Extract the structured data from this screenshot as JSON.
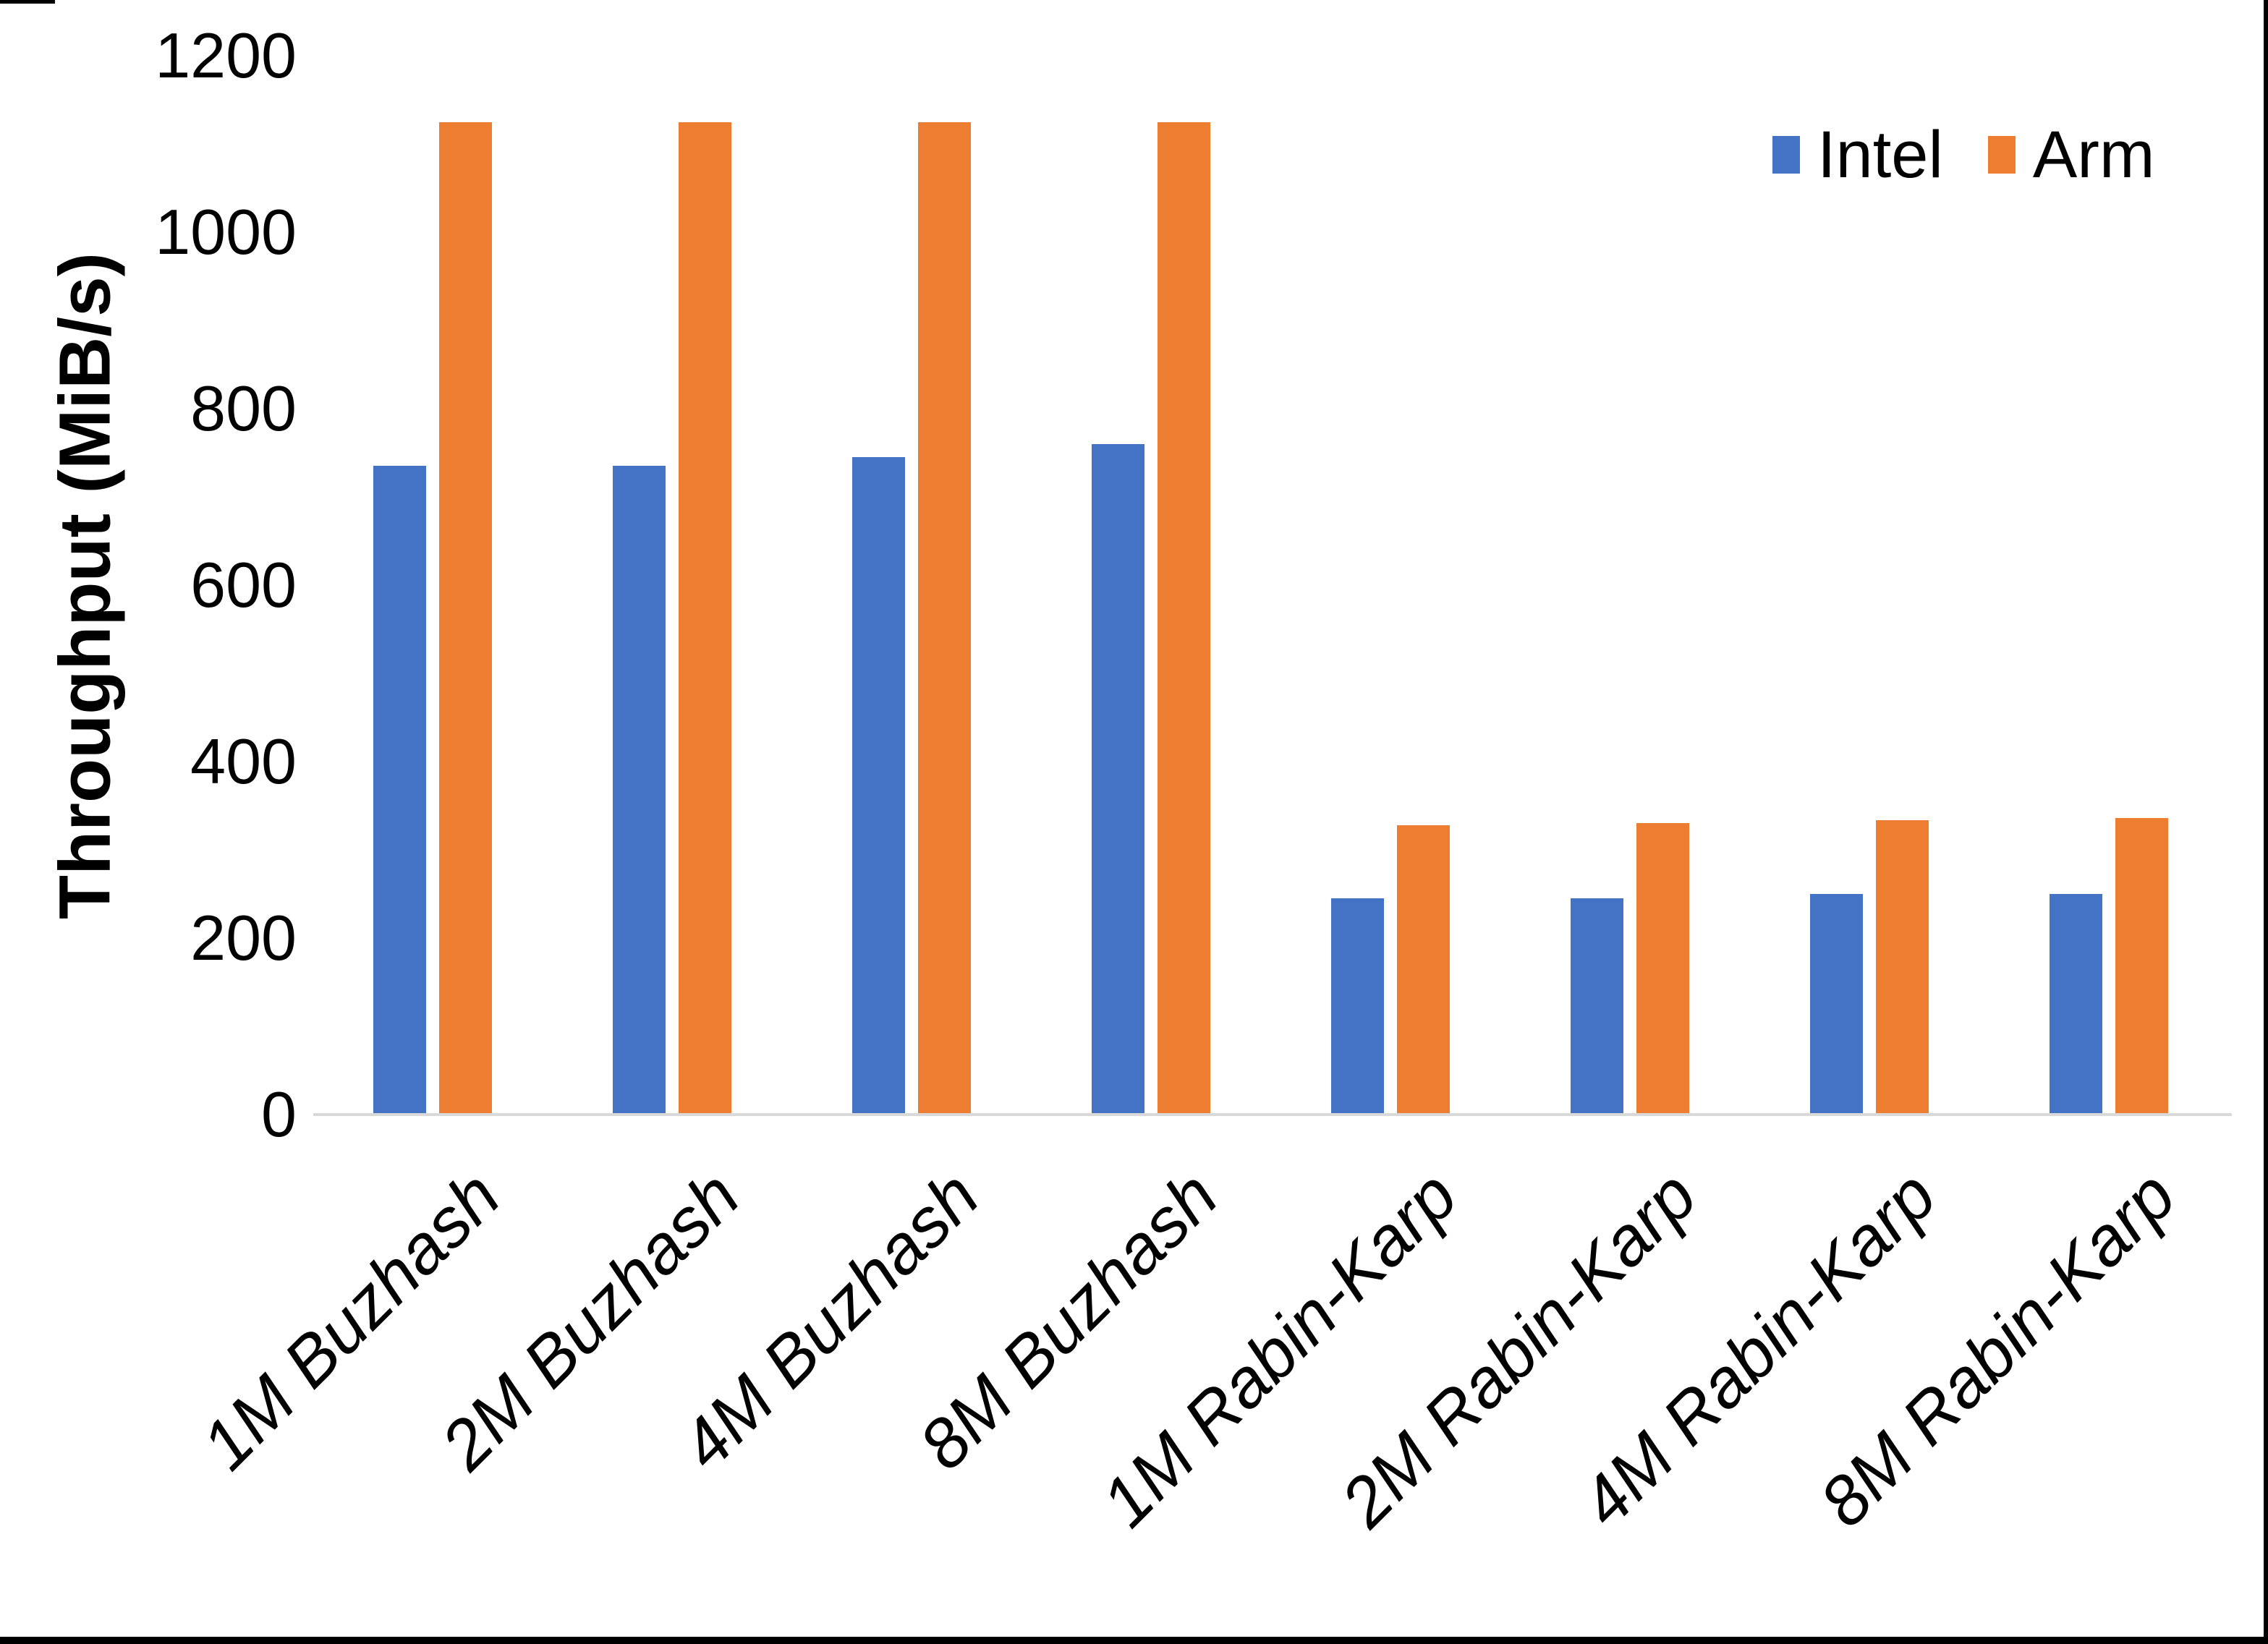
{
  "chart_data": {
    "type": "bar",
    "title": "",
    "xlabel": "",
    "ylabel": "Throughput (MiB/s)",
    "ylim": [
      0,
      1200
    ],
    "yticks": [
      0,
      200,
      400,
      600,
      800,
      1000,
      1200
    ],
    "grid": false,
    "legend_position": "top-right",
    "categories": [
      "1M Buzhash",
      "2M Buzhash",
      "4M Buzhash",
      "8M Buzhash",
      "1M Rabin-Karp",
      "2M Rabin-Karp",
      "4M Rabin-Karp",
      "8M Rabin-Karp"
    ],
    "series": [
      {
        "name": "Intel",
        "color": "#4472C4",
        "values": [
          735,
          735,
          745,
          760,
          245,
          245,
          250,
          250
        ]
      },
      {
        "name": "Arm",
        "color": "#ED7D31",
        "values": [
          1125,
          1125,
          1125,
          1125,
          328,
          330,
          334,
          336
        ]
      }
    ]
  },
  "colors": {
    "background": "#FFFFFF",
    "axis_line": "#D9D9D9",
    "text": "#000000",
    "border": "#000000"
  }
}
